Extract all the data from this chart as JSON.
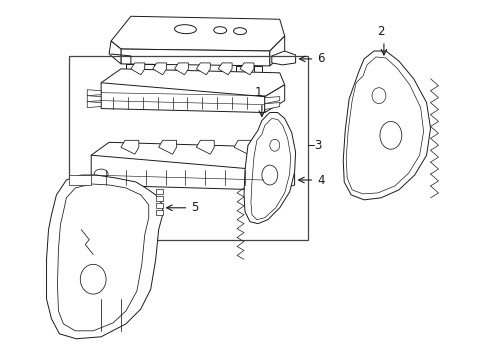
{
  "bg_color": "#ffffff",
  "line_color": "#1a1a1a",
  "line_width": 0.7,
  "label_fontsize": 8.5,
  "label_color": "#000000"
}
